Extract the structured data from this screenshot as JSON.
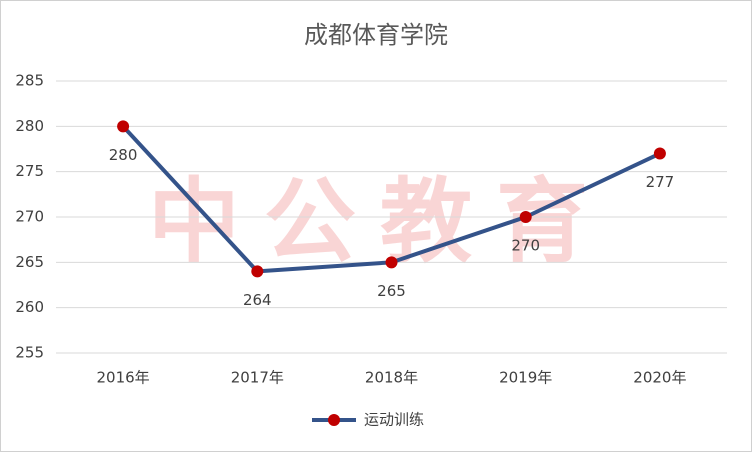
{
  "chart_data": {
    "type": "line",
    "title": "成都体育学院",
    "watermark": "中公教育",
    "categories": [
      "2016年",
      "2017年",
      "2018年",
      "2019年",
      "2020年"
    ],
    "series": [
      {
        "name": "运动训练",
        "color": "#34538a",
        "marker_color": "#c00000",
        "values": [
          280,
          264,
          265,
          270,
          277
        ]
      }
    ],
    "ylim": [
      255,
      285
    ],
    "yticks": [
      255,
      260,
      265,
      270,
      275,
      280,
      285
    ],
    "grid": true,
    "legend": "bottom"
  }
}
